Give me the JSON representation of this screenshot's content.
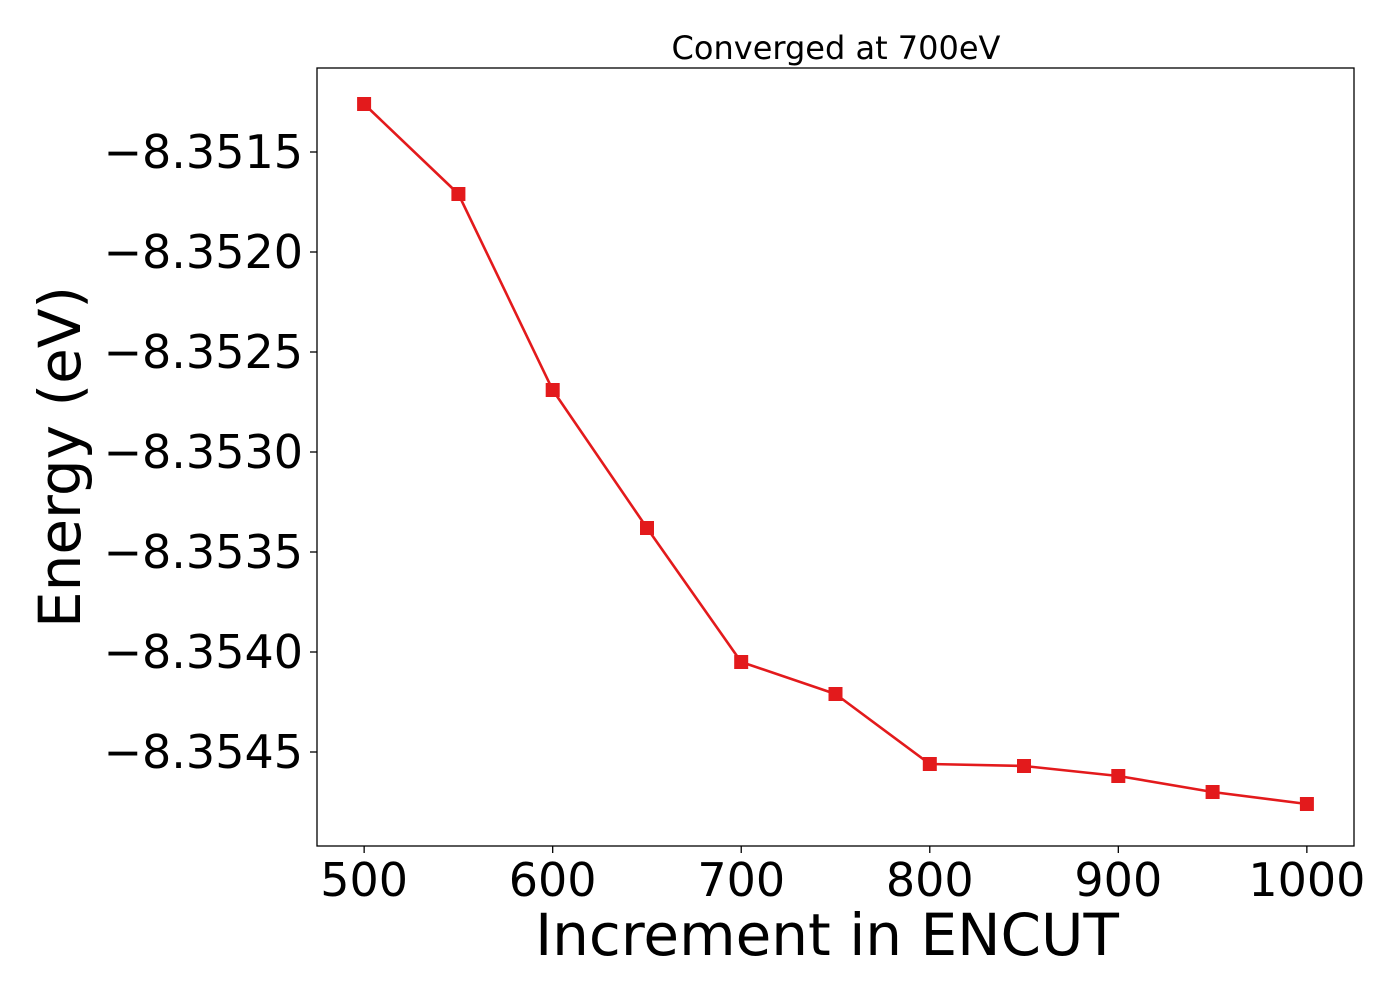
{
  "chart_data": {
    "type": "line",
    "title": "Converged at 700eV",
    "xlabel": "Increment in ENCUT",
    "ylabel": "Energy (eV)",
    "xlim": [
      475,
      1025
    ],
    "ylim": [
      -8.35497,
      -8.35108
    ],
    "xticks": [
      500,
      600,
      700,
      800,
      900,
      1000
    ],
    "xtick_labels": [
      "500",
      "600",
      "700",
      "800",
      "900",
      "1000"
    ],
    "yticks": [
      -8.3515,
      -8.352,
      -8.3525,
      -8.353,
      -8.3535,
      -8.354,
      -8.3545
    ],
    "ytick_labels": [
      "−8.3515",
      "−8.3520",
      "−8.3525",
      "−8.3530",
      "−8.3535",
      "−8.3540",
      "−8.3545"
    ],
    "grid": false,
    "legend": "none",
    "series": [
      {
        "color": "#e31a1c",
        "marker": "square",
        "x": [
          500,
          550,
          600,
          650,
          700,
          750,
          800,
          850,
          900,
          950,
          1000
        ],
        "y": [
          -8.35126,
          -8.35171,
          -8.35269,
          -8.35338,
          -8.35405,
          -8.35421,
          -8.35456,
          -8.35457,
          -8.35462,
          -8.3547,
          -8.35476
        ]
      }
    ]
  }
}
